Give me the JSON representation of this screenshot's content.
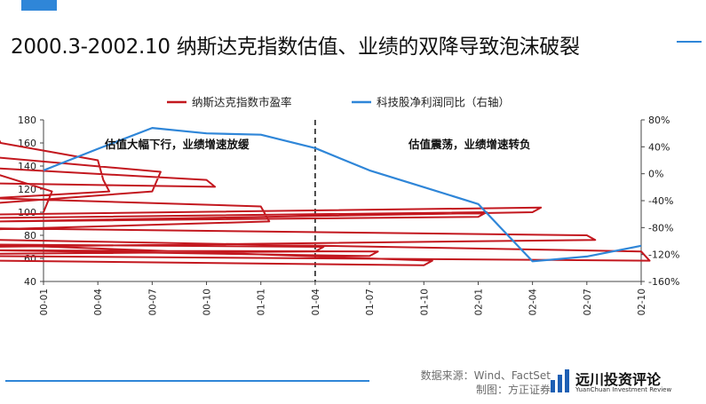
{
  "header": {
    "title": "2000.3-2002.10 纳斯达克指数估值、业绩的双降导致泡沫破裂"
  },
  "footer": {
    "source": "数据来源：Wind、FactSet",
    "made_by": "制图：方正证券",
    "brand_name": "远川投资评论",
    "brand_sub": "YuanChuan Investment Review"
  },
  "colors": {
    "pe": "#c3181f",
    "profit": "#2f86d8",
    "accent": "#2f86d8",
    "divider": "#222222"
  },
  "chart_data": {
    "type": "line",
    "title": "",
    "x_tick_labels": [
      "00-01",
      "00-04",
      "00-07",
      "00-10",
      "01-01",
      "01-04",
      "01-07",
      "01-10",
      "02-01",
      "02-04",
      "02-07",
      "02-10"
    ],
    "ylim_left": [
      40,
      180
    ],
    "yticks_left": [
      40,
      60,
      80,
      100,
      120,
      140,
      160,
      180
    ],
    "ylim_right": [
      -160,
      80
    ],
    "yticks_right": [
      -160,
      -120,
      -80,
      -40,
      0,
      40,
      80
    ],
    "right_axis_unit": "%",
    "legend_position": "top",
    "divider_at": "01-04",
    "annotations": [
      "估值大幅下行，业绩增速放缓",
      "估值震荡，业绩增速转负"
    ],
    "series": [
      {
        "name": "纳斯达克指数市盈率",
        "axis": "left",
        "x": [
          "00-01",
          "00-01-15",
          "00-02",
          "00-02-15",
          "00-03",
          "00-03-10",
          "00-03-20",
          "00-04",
          "00-04-10",
          "00-04-20",
          "00-05",
          "00-05-15",
          "00-06",
          "00-06-15",
          "00-07",
          "00-07-15",
          "00-08",
          "00-08-15",
          "00-09",
          "00-09-15",
          "00-10",
          "00-10-15",
          "00-11",
          "00-11-15",
          "00-12",
          "00-12-15",
          "01-01",
          "01-01-15",
          "01-02",
          "01-02-15",
          "01-03",
          "01-03-15",
          "01-04",
          "01-04-15",
          "01-05",
          "01-05-15",
          "01-06",
          "01-06-15",
          "01-07",
          "01-07-15",
          "01-08",
          "01-08-15",
          "01-09",
          "01-09-15",
          "01-10",
          "01-10-15",
          "01-11",
          "01-11-15",
          "01-12",
          "01-12-15",
          "02-01",
          "02-01-15",
          "02-02",
          "02-02-15",
          "02-03",
          "02-03-15",
          "02-04",
          "02-04-15",
          "02-05",
          "02-05-15",
          "02-06",
          "02-06-15",
          "02-07",
          "02-07-15",
          "02-08",
          "02-08-15",
          "02-09",
          "02-09-15",
          "02-10",
          "02-10-15",
          "02-11"
        ],
        "values": [
          100,
          118,
          135,
          150,
          158,
          170,
          160,
          145,
          128,
          118,
          112,
          105,
          102,
          108,
          118,
          135,
          148,
          156,
          150,
          138,
          128,
          122,
          125,
          130,
          120,
          112,
          105,
          92,
          85,
          78,
          70,
          64,
          66,
          70,
          72,
          68,
          66,
          67,
          62,
          66,
          67,
          64,
          60,
          58,
          54,
          58,
          72,
          85,
          88,
          92,
          96,
          100,
          95,
          98,
          96,
          92,
          100,
          104,
          98,
          94,
          90,
          86,
          80,
          76,
          70,
          73,
          72,
          76,
          66,
          58,
          62
        ]
      },
      {
        "name": "科技股净利润同比（右轴）",
        "axis": "right",
        "x": [
          "00-01",
          "00-04",
          "00-07",
          "00-10",
          "01-01",
          "01-04",
          "01-07",
          "01-10",
          "02-01",
          "02-04",
          "02-07",
          "02-10"
        ],
        "values": [
          5,
          37,
          68,
          60,
          58,
          38,
          5,
          -20,
          -45,
          -130,
          -123,
          -107
        ]
      }
    ]
  }
}
